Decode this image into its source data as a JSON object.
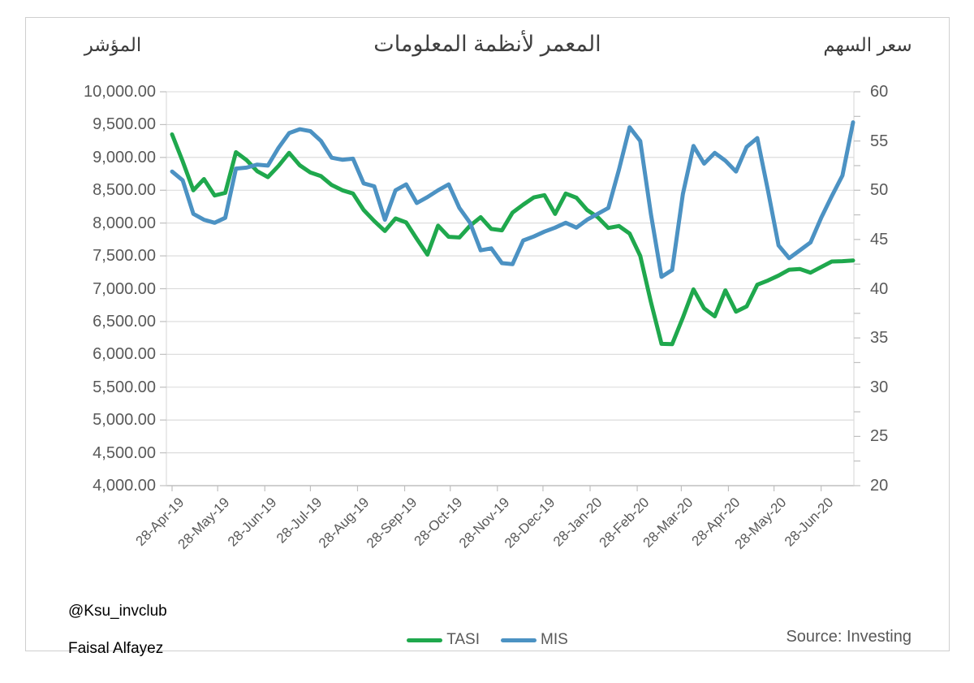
{
  "chart_data": {
    "type": "line",
    "title": "المعمر لأنظمة المعلومات",
    "left_axis": {
      "label": "المؤشر",
      "min": 4000,
      "max": 10000,
      "step": 500,
      "tick_labels": [
        "10,000.00",
        "9,500.00",
        "9,000.00",
        "8,500.00",
        "8,000.00",
        "7,500.00",
        "7,000.00",
        "6,500.00",
        "6,000.00",
        "5,500.00",
        "5,000.00",
        "4,500.00",
        "4,000.00"
      ]
    },
    "right_axis": {
      "label": "سعر السهم",
      "min": 20,
      "max": 60,
      "step": 5,
      "minor_step": 2.5,
      "tick_labels": [
        "60",
        "55",
        "50",
        "45",
        "40",
        "35",
        "30",
        "25",
        "20"
      ]
    },
    "x_axis": {
      "tick_labels": [
        "28-Apr-19",
        "28-May-19",
        "28-Jun-19",
        "28-Jul-19",
        "28-Aug-19",
        "28-Sep-19",
        "28-Oct-19",
        "28-Nov-19",
        "28-Dec-19",
        "28-Jan-20",
        "28-Feb-20",
        "28-Mar-20",
        "28-Apr-20",
        "28-May-20",
        "28-Jun-20"
      ],
      "tick_day_offsets": [
        0,
        30,
        61,
        91,
        122,
        153,
        183,
        214,
        244,
        275,
        306,
        335,
        366,
        396,
        427
      ],
      "total_days": 448,
      "points_interval_days": 7
    },
    "grid": "horizontal",
    "legend_position": "bottom-center",
    "series": [
      {
        "name": "TASI",
        "axis": "left",
        "color": "#1fa84d",
        "values": [
          9350,
          8940,
          8500,
          8670,
          8420,
          8460,
          9080,
          8960,
          8790,
          8700,
          8870,
          9070,
          8880,
          8770,
          8715,
          8580,
          8500,
          8450,
          8200,
          8030,
          7880,
          8070,
          8010,
          7760,
          7520,
          7960,
          7790,
          7780,
          7960,
          8090,
          7910,
          7890,
          8160,
          8280,
          8390,
          8425,
          8140,
          8450,
          8385,
          8200,
          8090,
          7925,
          7955,
          7840,
          7500,
          6800,
          6160,
          6155,
          6560,
          6990,
          6700,
          6580,
          6975,
          6650,
          6730,
          7060,
          7125,
          7200,
          7290,
          7300,
          7245,
          7330,
          7415,
          7420,
          7430
        ]
      },
      {
        "name": "MIS",
        "axis": "right",
        "color": "#4c92c3",
        "values": [
          51.9,
          51.0,
          47.6,
          47.0,
          46.7,
          47.2,
          52.2,
          52.3,
          52.6,
          52.5,
          54.3,
          55.8,
          56.2,
          56.0,
          55.0,
          53.3,
          53.1,
          53.2,
          50.7,
          50.4,
          47.0,
          50.0,
          50.6,
          48.7,
          49.3,
          50.0,
          50.6,
          48.2,
          46.7,
          43.9,
          44.1,
          42.6,
          42.5,
          44.9,
          45.3,
          45.8,
          46.2,
          46.7,
          46.2,
          47.0,
          47.6,
          48.2,
          52.1,
          56.4,
          55.0,
          47.6,
          41.2,
          41.9,
          49.6,
          54.5,
          52.7,
          53.8,
          53.0,
          51.9,
          54.4,
          55.3,
          50.0,
          44.4,
          43.1,
          43.9,
          44.7,
          47.2,
          49.4,
          51.5,
          56.9
        ]
      }
    ],
    "colors": {
      "gridline": "#d9d9d9",
      "axis_line": "#bfbfbf",
      "tick_text": "#595959",
      "title_text": "#404040"
    }
  },
  "legend": {
    "items": [
      {
        "label": "TASI",
        "color": "#1fa84d"
      },
      {
        "label": "MIS",
        "color": "#4c92c3"
      }
    ]
  },
  "footer": {
    "handle": "@Ksu_invclub",
    "author": "Faisal Alfayez",
    "source": "Source: Investing"
  }
}
